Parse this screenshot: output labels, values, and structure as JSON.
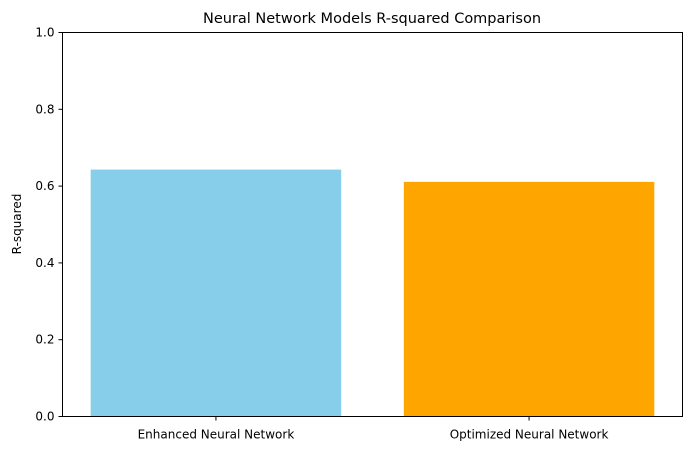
{
  "chart_data": {
    "type": "bar",
    "title": "Neural Network Models R-squared Comparison",
    "xlabel": "",
    "ylabel": "R-squared",
    "categories": [
      "Enhanced Neural Network",
      "Optimized Neural Network"
    ],
    "values": [
      0.643,
      0.611
    ],
    "colors": [
      "#87CEEB",
      "#FFA500"
    ],
    "ylim": [
      0,
      1
    ],
    "yticks": [
      0.0,
      0.2,
      0.4,
      0.6,
      0.8,
      1.0
    ],
    "ytick_labels": [
      "0.0",
      "0.2",
      "0.4",
      "0.6",
      "0.8",
      "1.0"
    ],
    "grid": false,
    "legend": "none"
  }
}
